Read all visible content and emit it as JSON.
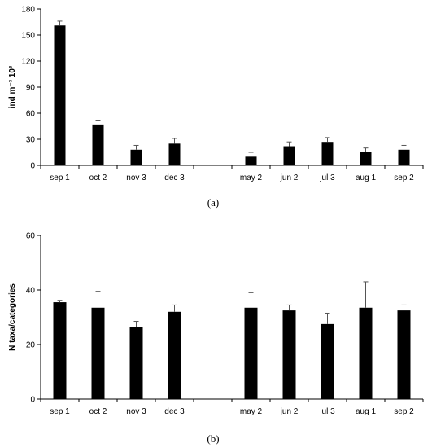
{
  "chart_data": [
    {
      "type": "bar",
      "caption": "(a)",
      "ylabel": "ind m⁻³ 10³",
      "ylim": [
        0,
        180
      ],
      "yticks": [
        0,
        30,
        60,
        90,
        120,
        150,
        180
      ],
      "categories": [
        "sep 1",
        "oct 2",
        "nov 3",
        "dec 3",
        "",
        "may 2",
        "jun 2",
        "jul 3",
        "aug 1",
        "sep 2"
      ],
      "values": [
        161,
        47,
        18,
        25,
        null,
        10,
        22,
        27,
        15,
        18
      ],
      "errors": [
        5,
        5,
        5,
        6,
        null,
        5,
        5,
        5,
        5,
        5
      ],
      "color": "#000000",
      "grid": false
    },
    {
      "type": "bar",
      "caption": "(b)",
      "ylabel": "N taxa/categories",
      "ylim": [
        0,
        60
      ],
      "yticks": [
        0,
        20,
        40,
        60
      ],
      "categories": [
        "sep 1",
        "oct 2",
        "nov 3",
        "dec 3",
        "",
        "may 2",
        "jun 2",
        "jul 3",
        "aug 1",
        "sep 2"
      ],
      "values": [
        35.5,
        33.5,
        26.5,
        32,
        null,
        33.5,
        32.5,
        27.5,
        33.5,
        32.5
      ],
      "errors": [
        0.7,
        6,
        2,
        2.5,
        null,
        5.5,
        2,
        4,
        9.5,
        2
      ],
      "color": "#000000",
      "grid": false
    }
  ]
}
